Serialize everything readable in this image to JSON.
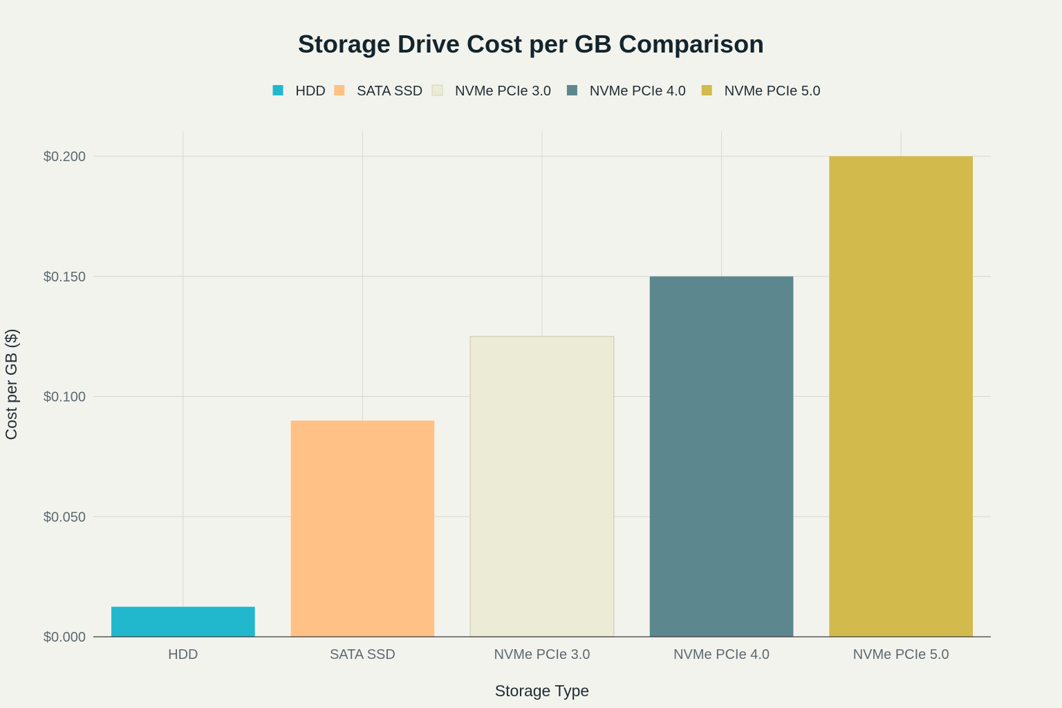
{
  "chart_data": {
    "type": "bar",
    "title": "Storage Drive Cost per GB Comparison",
    "xlabel": "Storage Type",
    "ylabel": "Cost per GB ($)",
    "categories": [
      "HDD",
      "SATA SSD",
      "NVMe PCIe 3.0",
      "NVMe PCIe 4.0",
      "NVMe PCIe 5.0"
    ],
    "values": [
      0.0125,
      0.09,
      0.125,
      0.15,
      0.2
    ],
    "colors": [
      "#21b8cd",
      "#ffc185",
      "#ecebd5",
      "#5d878f",
      "#d2ba4c"
    ],
    "ylim": [
      0,
      0.2
    ],
    "yticks": [
      0,
      0.05,
      0.1,
      0.15,
      0.2
    ],
    "ytick_labels": [
      "$0.000",
      "$0.050",
      "$0.100",
      "$0.150",
      "$0.200"
    ],
    "legend": {
      "placement": "top-center",
      "entries": [
        "HDD",
        "SATA SSD",
        "NVMe PCIe 3.0",
        "NVMe PCIe 4.0",
        "NVMe PCIe 5.0"
      ]
    },
    "grid": true
  }
}
